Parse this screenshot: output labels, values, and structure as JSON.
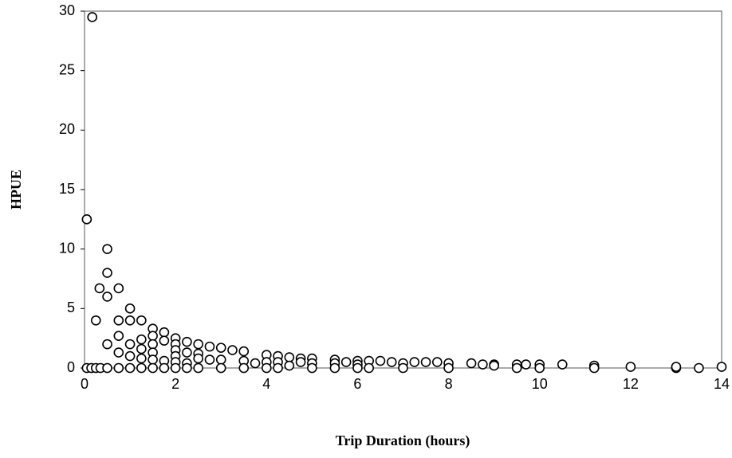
{
  "chart_data": {
    "type": "scatter",
    "x_label": "Trip Duration (hours)",
    "y_label": "HPUE",
    "x": [
      0.05,
      0.17,
      0.05,
      0.15,
      0.25,
      0.35,
      0.5,
      0.75,
      1,
      0.25,
      0.33,
      0.5,
      0.5,
      0.5,
      0.5,
      0.75,
      0.75,
      0.75,
      0.75,
      1,
      1,
      1,
      1,
      1.25,
      1.25,
      1.25,
      1.25,
      1.25,
      1.5,
      1.5,
      1.5,
      1.5,
      1.5,
      1.5,
      1.75,
      1.75,
      1.75,
      1.75,
      2,
      2,
      2,
      2,
      2,
      2,
      2.25,
      2.25,
      2.25,
      2.25,
      2.5,
      2.5,
      2.5,
      2.5,
      2.75,
      2.75,
      3,
      3,
      3,
      3.25,
      3.5,
      3.5,
      3.5,
      3.75,
      4,
      4,
      4,
      4.25,
      4.25,
      4.25,
      4.5,
      4.5,
      4.75,
      4.75,
      5,
      5,
      5,
      5.5,
      5.5,
      5.5,
      5.75,
      6,
      6,
      6,
      6.25,
      6.25,
      6.5,
      6.75,
      7,
      7,
      7.25,
      7.5,
      7.75,
      8,
      8,
      8.5,
      8.75,
      9,
      9,
      9.5,
      9.5,
      9.7,
      10,
      10,
      10.5,
      11.2,
      11.2,
      12,
      13,
      13,
      13.5,
      14
    ],
    "values": [
      12.5,
      29.5,
      0,
      0,
      0,
      0,
      0,
      0,
      0,
      4,
      6.7,
      10,
      8,
      6,
      2,
      6.7,
      4,
      2.7,
      1.3,
      5,
      4,
      2,
      1,
      4,
      2.4,
      1.6,
      0.8,
      0,
      3.3,
      2.7,
      2,
      1.3,
      0.7,
      0,
      3,
      2.3,
      0.6,
      0,
      2.5,
      2,
      1.5,
      1,
      0.5,
      0,
      2.2,
      1.3,
      0.4,
      0,
      2,
      1.2,
      0.8,
      0,
      1.8,
      0.7,
      1.7,
      0.7,
      0,
      1.5,
      1.4,
      0.6,
      0,
      0.4,
      1.1,
      0.5,
      0,
      1,
      0.5,
      0,
      0.9,
      0.2,
      0.8,
      0.5,
      0.8,
      0.4,
      0,
      0.7,
      0.4,
      0,
      0.5,
      0.6,
      0.3,
      0,
      0.6,
      0,
      0.6,
      0.5,
      0.4,
      0,
      0.5,
      0.5,
      0.5,
      0.4,
      0,
      0.4,
      0.3,
      0.3,
      0.2,
      0.3,
      0,
      0.3,
      0.3,
      0,
      0.3,
      0.2,
      0,
      0.1,
      0,
      0.1,
      0,
      0.1
    ],
    "xlim": [
      0,
      14
    ],
    "xticks": [
      0,
      2,
      4,
      6,
      8,
      10,
      12,
      14
    ],
    "ylim": [
      0,
      30
    ],
    "yticks": [
      0,
      5,
      10,
      15,
      20,
      25,
      30
    ],
    "color": "#ffffff"
  }
}
